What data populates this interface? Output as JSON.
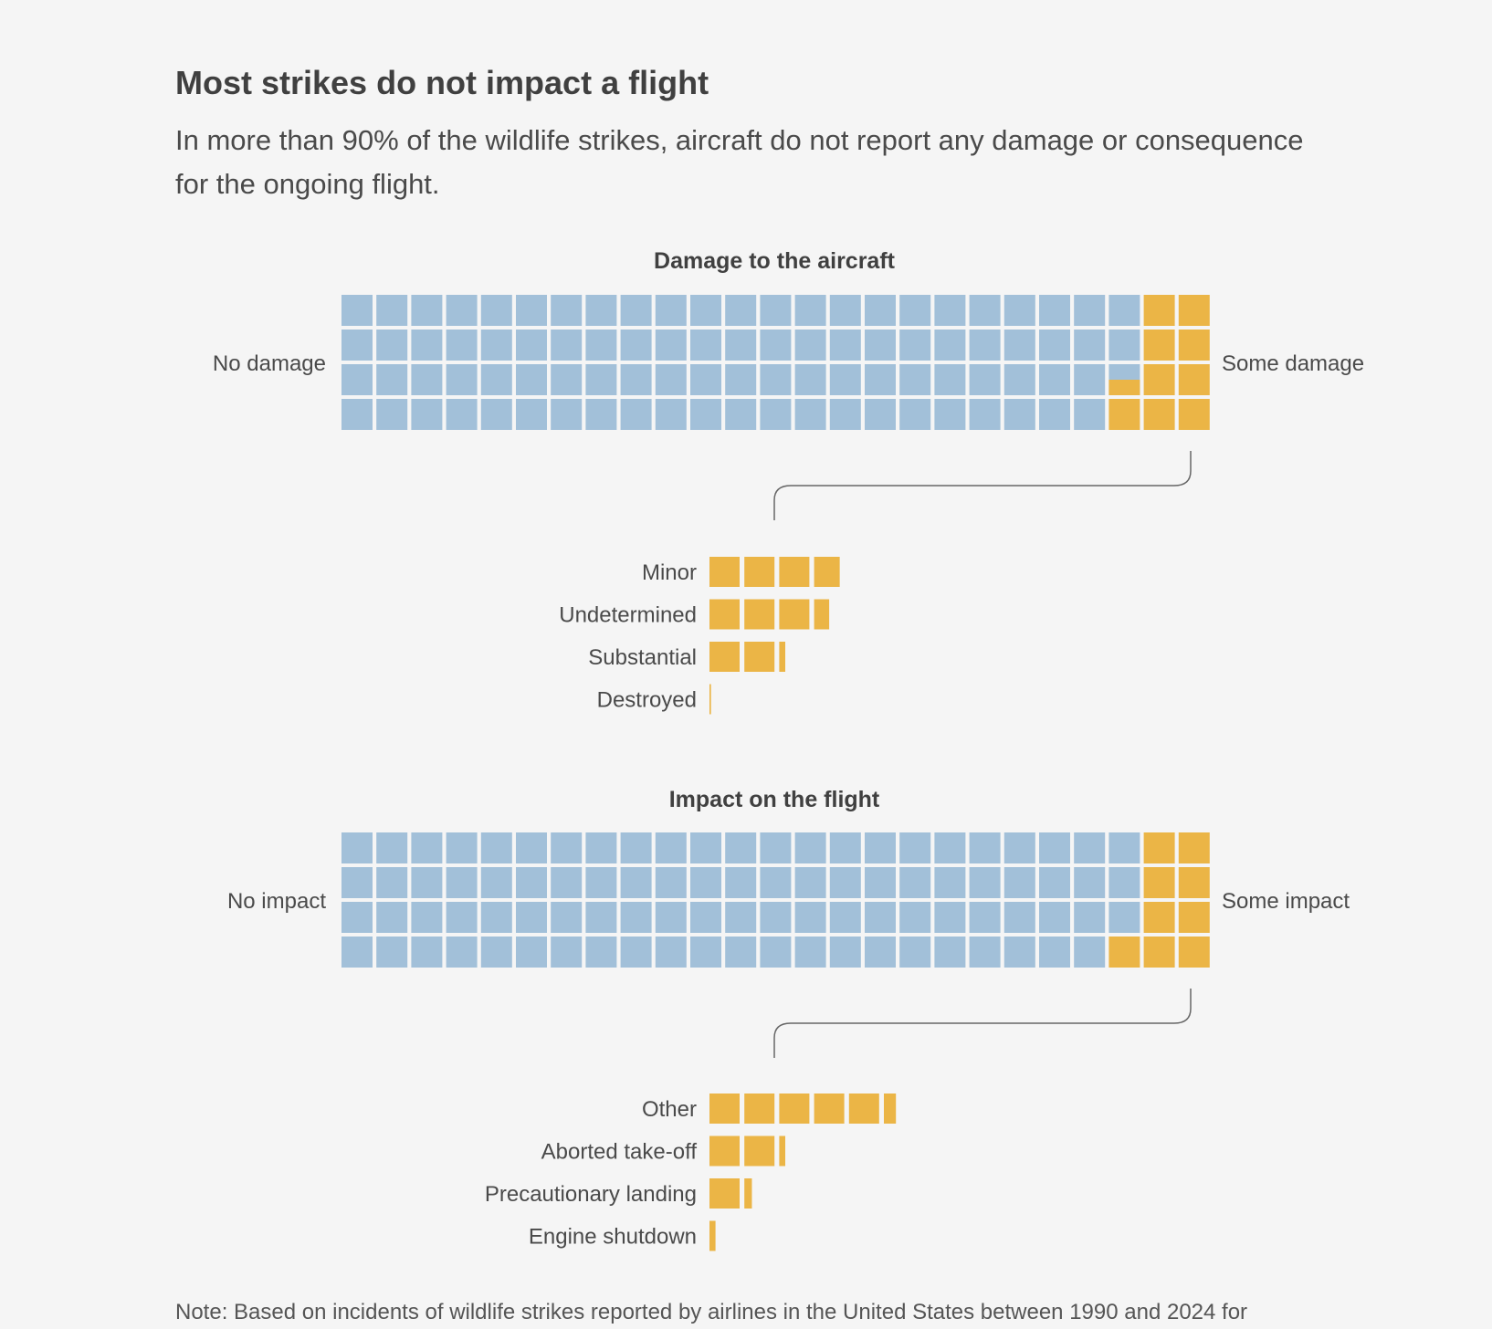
{
  "header": {
    "title": "Most strikes do not impact a flight",
    "subtitle": "In more than 90% of the wildlife strikes, aircraft do not report any damage or consequence for the ongoing flight."
  },
  "footer": {
    "note": "Note: Based on incidents of wildlife strikes reported by airlines in the United States between 1990 and 2024 for"
  },
  "colors": {
    "none": "#a2c0d9",
    "some": "#ebb546",
    "connector": "#666666"
  },
  "chart_data": [
    {
      "type": "waffle",
      "title": "Damage to the aircraft",
      "grid": {
        "rows": 4,
        "cols": 25,
        "total_cells": 100
      },
      "left_label": "No damage",
      "right_label": "Some damage",
      "values": {
        "none_pct": 90.5,
        "some_pct": 9.5
      },
      "breakdown": {
        "type": "bar",
        "unit": "cells",
        "categories": [
          "Minor",
          "Undetermined",
          "Substantial",
          "Destroyed"
        ],
        "values": [
          3.85,
          3.5,
          2.2,
          0.05
        ]
      }
    },
    {
      "type": "waffle",
      "title": "Impact on the flight",
      "grid": {
        "rows": 4,
        "cols": 25,
        "total_cells": 100
      },
      "left_label": "No impact",
      "right_label": "Some impact",
      "values": {
        "none_pct": 91,
        "some_pct": 9
      },
      "breakdown": {
        "type": "bar",
        "unit": "cells",
        "categories": [
          "Other",
          "Aborted take-off",
          "Precautionary landing",
          "Engine shutdown"
        ],
        "values": [
          5.4,
          2.2,
          1.25,
          0.2
        ]
      }
    }
  ]
}
